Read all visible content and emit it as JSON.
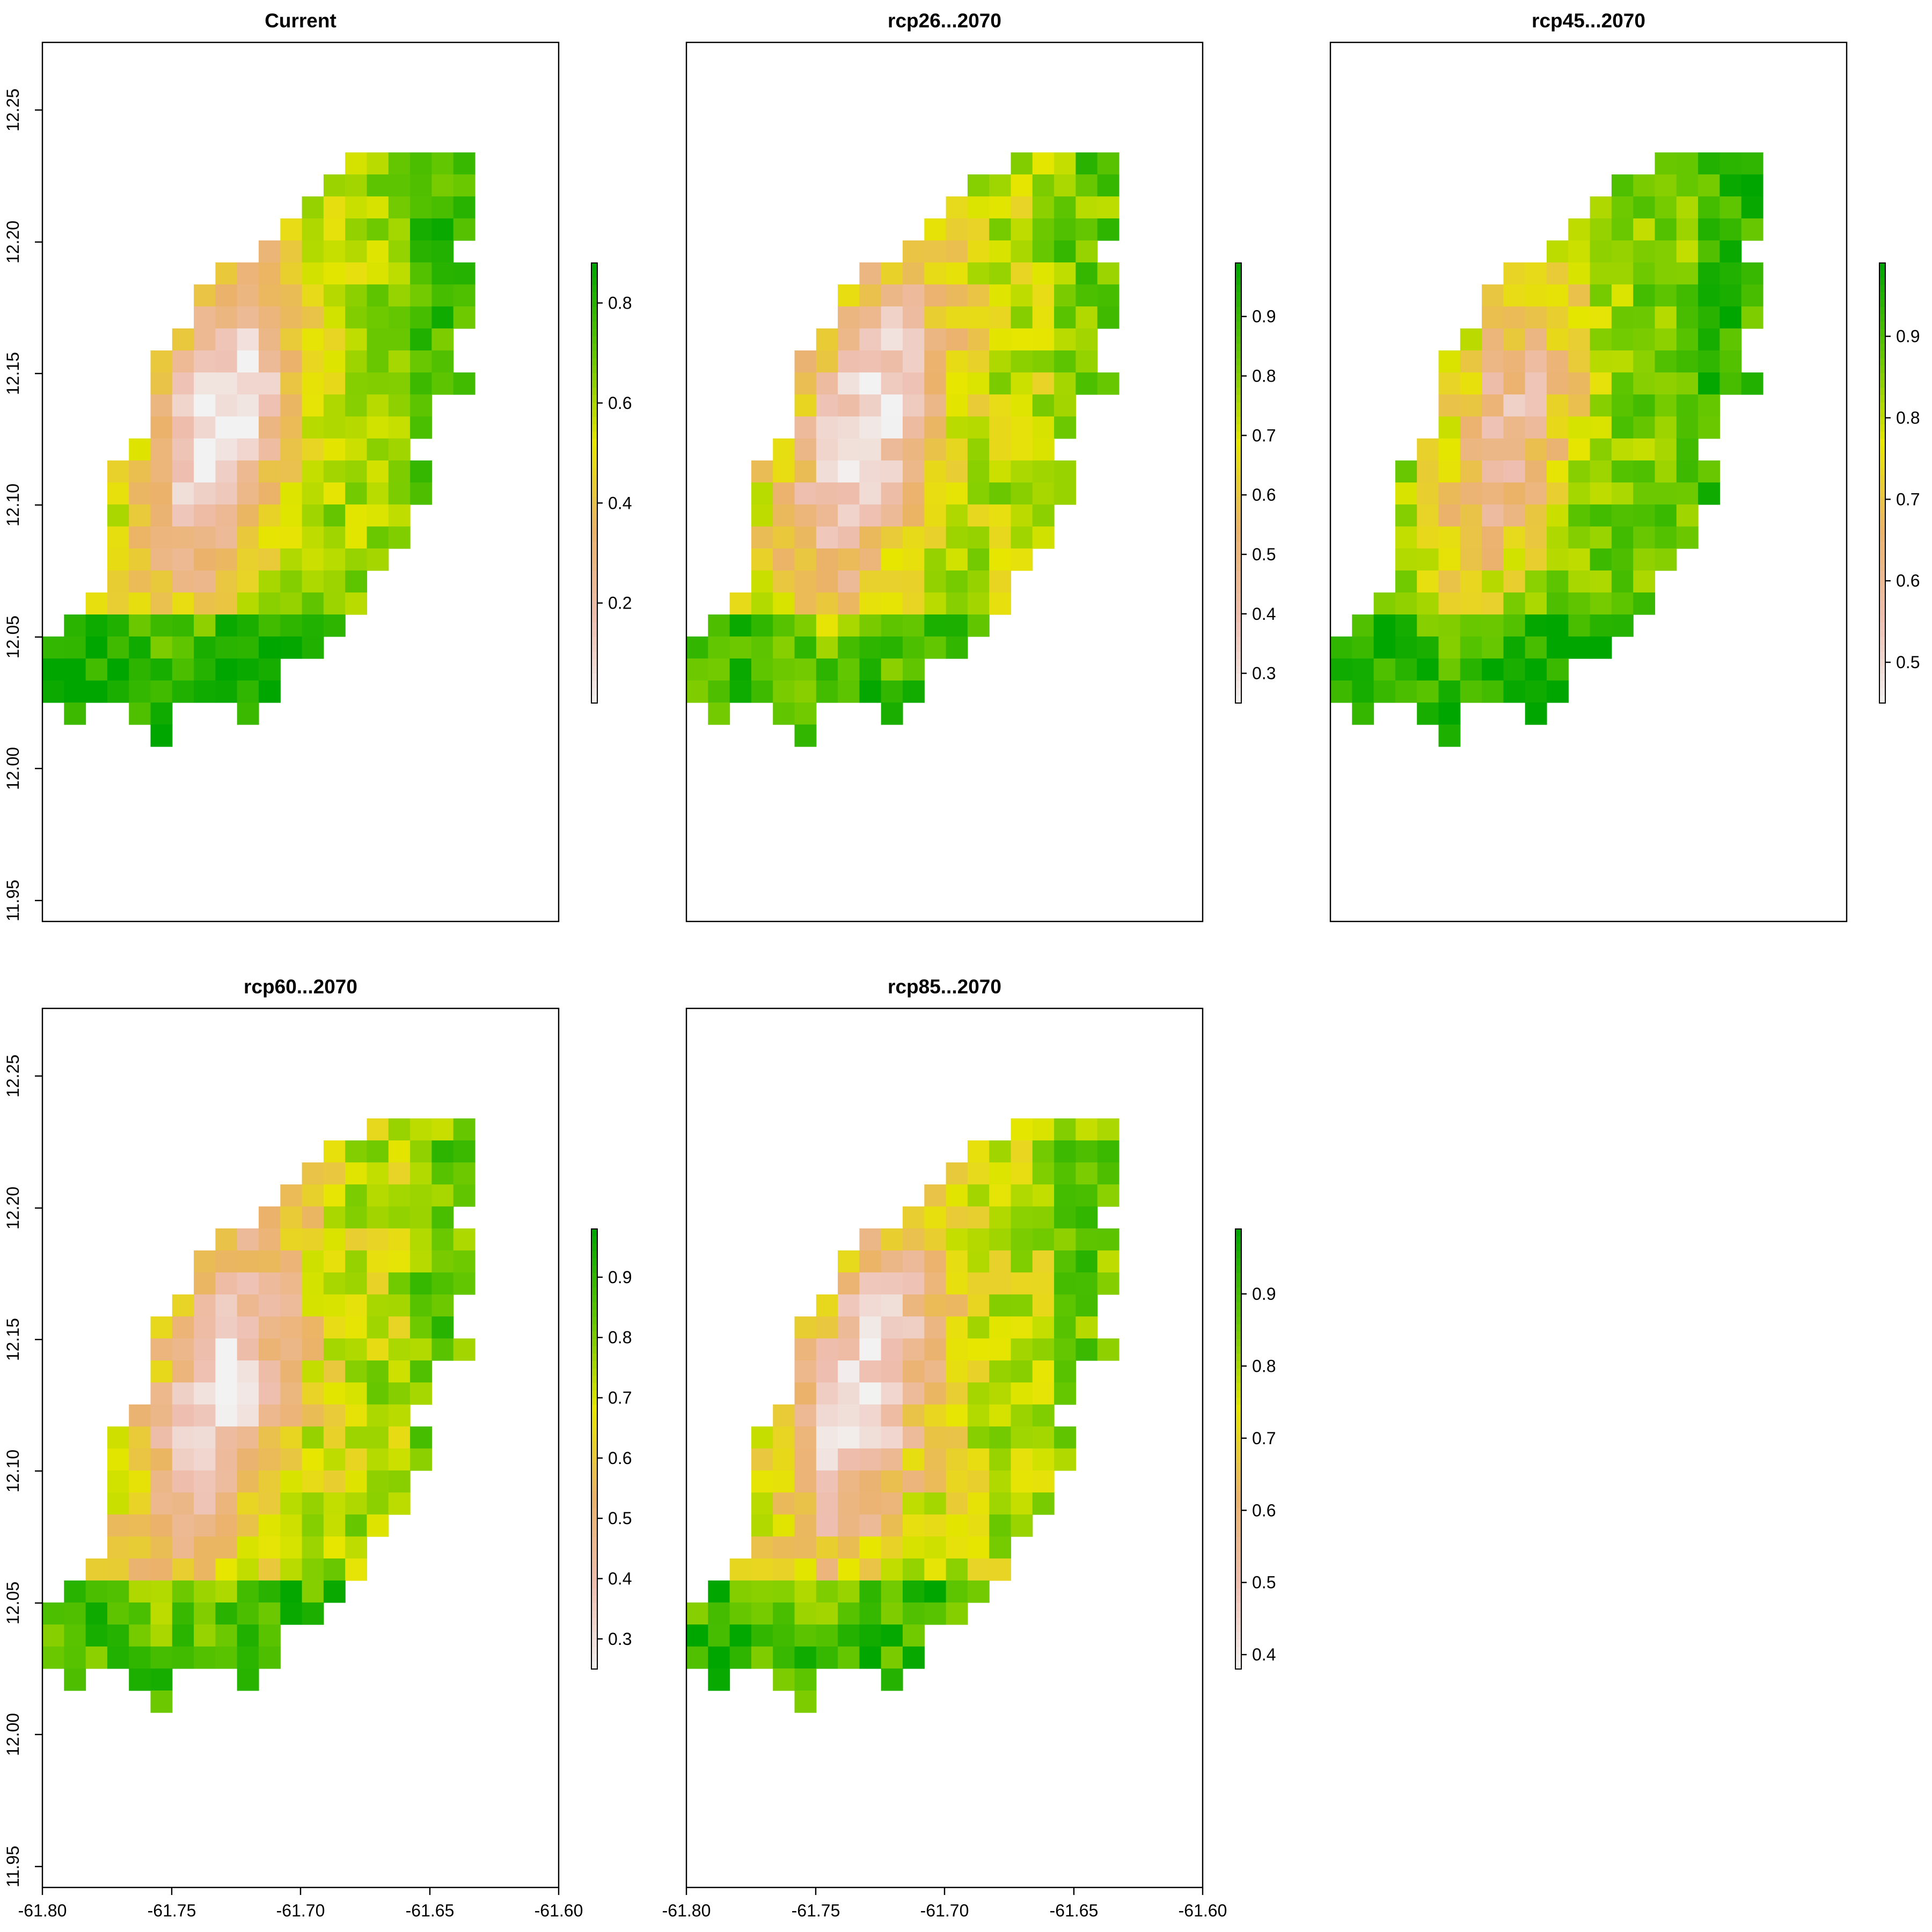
{
  "panels": [
    {
      "id": "current",
      "title": "Current",
      "legend": {
        "min": 0.0,
        "max": 0.88,
        "ticks": [
          "0.2",
          "0.4",
          "0.6",
          "0.8"
        ]
      },
      "xaxis": false,
      "yaxis": true
    },
    {
      "id": "rcp26",
      "title": "rcp26...2070",
      "legend": {
        "min": 0.25,
        "max": 0.99,
        "ticks": [
          "0.3",
          "0.4",
          "0.5",
          "0.6",
          "0.7",
          "0.8",
          "0.9"
        ]
      },
      "xaxis": false,
      "yaxis": false
    },
    {
      "id": "rcp45",
      "title": "rcp45...2070",
      "legend": {
        "min": 0.45,
        "max": 0.99,
        "ticks": [
          "0.5",
          "0.6",
          "0.7",
          "0.8",
          "0.9"
        ]
      },
      "xaxis": false,
      "yaxis": false
    },
    {
      "id": "rcp60",
      "title": "rcp60...2070",
      "legend": {
        "min": 0.25,
        "max": 0.98,
        "ticks": [
          "0.3",
          "0.4",
          "0.5",
          "0.6",
          "0.7",
          "0.8",
          "0.9"
        ]
      },
      "xaxis": true,
      "yaxis": true
    },
    {
      "id": "rcp85",
      "title": "rcp85...2070",
      "legend": {
        "min": 0.38,
        "max": 0.99,
        "ticks": [
          "0.4",
          "0.5",
          "0.6",
          "0.7",
          "0.8",
          "0.9"
        ]
      },
      "xaxis": true,
      "yaxis": false
    }
  ],
  "axes": {
    "x_ticks": [
      "-61.80",
      "-61.75",
      "-61.70",
      "-61.65",
      "-61.60"
    ],
    "y_ticks": [
      "11.95",
      "12.00",
      "12.05",
      "12.10",
      "12.15",
      "12.20",
      "12.25"
    ],
    "xlim": [
      -61.8,
      -61.6
    ],
    "ylim": [
      11.942,
      12.275
    ]
  },
  "colors": {
    "ramp": [
      "#F2F2F2",
      "#EEBEAF",
      "#EBB26A",
      "#E6E600",
      "#63C600",
      "#00A600"
    ],
    "frame": "#000000"
  }
}
